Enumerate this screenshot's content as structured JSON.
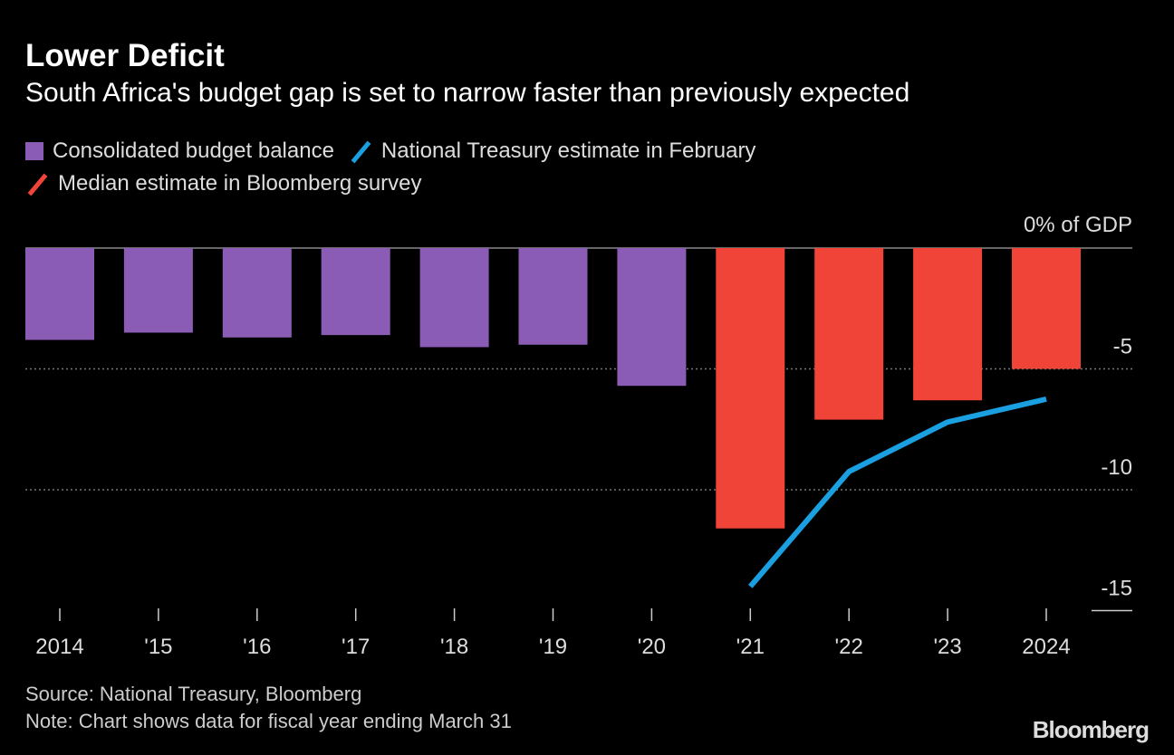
{
  "title": "Lower Deficit",
  "subtitle": "South Africa's budget gap is set to narrow faster than previously expected",
  "legend": [
    {
      "label": "Consolidated budget balance",
      "color": "#8a5cb5",
      "shape": "square"
    },
    {
      "label": "National Treasury estimate in February",
      "color": "#1a9fe0",
      "shape": "line"
    },
    {
      "label": "Median estimate in Bloomberg survey",
      "color": "#f04438",
      "shape": "line"
    }
  ],
  "source": "Source: National Treasury, Bloomberg",
  "note": "Note: Chart shows data for fiscal year ending March 31",
  "logo": "Bloomberg",
  "chart_data": {
    "type": "bar",
    "title": "Lower Deficit",
    "ylabel": "% of GDP",
    "ylim": [
      -15,
      0
    ],
    "yticks": [
      {
        "v": 0,
        "label": "0% of GDP"
      },
      {
        "v": -5,
        "label": "-5"
      },
      {
        "v": -10,
        "label": "-10"
      },
      {
        "v": -15,
        "label": "-15"
      }
    ],
    "categories": [
      "2014",
      "'15",
      "'16",
      "'17",
      "'18",
      "'19",
      "'20",
      "'21",
      "'22",
      "'23",
      "2024"
    ],
    "series": [
      {
        "name": "Consolidated budget balance",
        "type": "bar",
        "color": "#8a5cb5",
        "values": [
          -3.8,
          -3.5,
          -3.7,
          -3.6,
          -4.1,
          -4.0,
          -5.7,
          null,
          null,
          null,
          null
        ]
      },
      {
        "name": "Median estimate in Bloomberg survey",
        "type": "bar",
        "color": "#f04438",
        "values": [
          null,
          null,
          null,
          null,
          null,
          null,
          null,
          -11.6,
          -7.1,
          -6.3,
          -5.0
        ]
      },
      {
        "name": "National Treasury estimate in February",
        "type": "line",
        "color": "#1a9fe0",
        "values": [
          null,
          null,
          null,
          null,
          null,
          null,
          null,
          -14.0,
          -9.25,
          -7.2,
          -6.25
        ]
      }
    ],
    "grid": true
  }
}
